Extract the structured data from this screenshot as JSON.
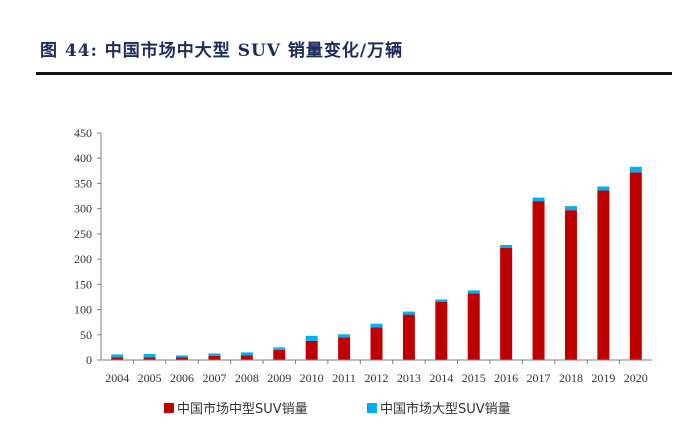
{
  "figure": {
    "title": "图 44:  中国市场中大型 SUV 销量变化/万辆"
  },
  "colors": {
    "series_mid": "#c00000",
    "series_large": "#00b0f0",
    "axis": "#7f7f7f",
    "title": "#1d2a5c"
  },
  "chart_data": {
    "type": "bar",
    "stacked": true,
    "categories": [
      "2004",
      "2005",
      "2006",
      "2007",
      "2008",
      "2009",
      "2010",
      "2011",
      "2012",
      "2013",
      "2014",
      "2015",
      "2016",
      "2017",
      "2018",
      "2019",
      "2020"
    ],
    "series": [
      {
        "name": "中国市场中型SUV销量",
        "color": "#c00000",
        "values": [
          5,
          5,
          5,
          8,
          9,
          20,
          38,
          45,
          65,
          90,
          115,
          132,
          222,
          315,
          297,
          336,
          372
        ]
      },
      {
        "name": "中国市场大型SUV销量",
        "color": "#00b0f0",
        "values": [
          6,
          7,
          4,
          5,
          6,
          5,
          10,
          6,
          7,
          6,
          5,
          6,
          6,
          7,
          8,
          8,
          11
        ]
      }
    ],
    "ylim": [
      0,
      450
    ],
    "yticks": [
      0,
      50,
      100,
      150,
      200,
      250,
      300,
      350,
      400,
      450
    ],
    "grid": false,
    "legend": "bottom",
    "xlabel": "",
    "ylabel": ""
  }
}
